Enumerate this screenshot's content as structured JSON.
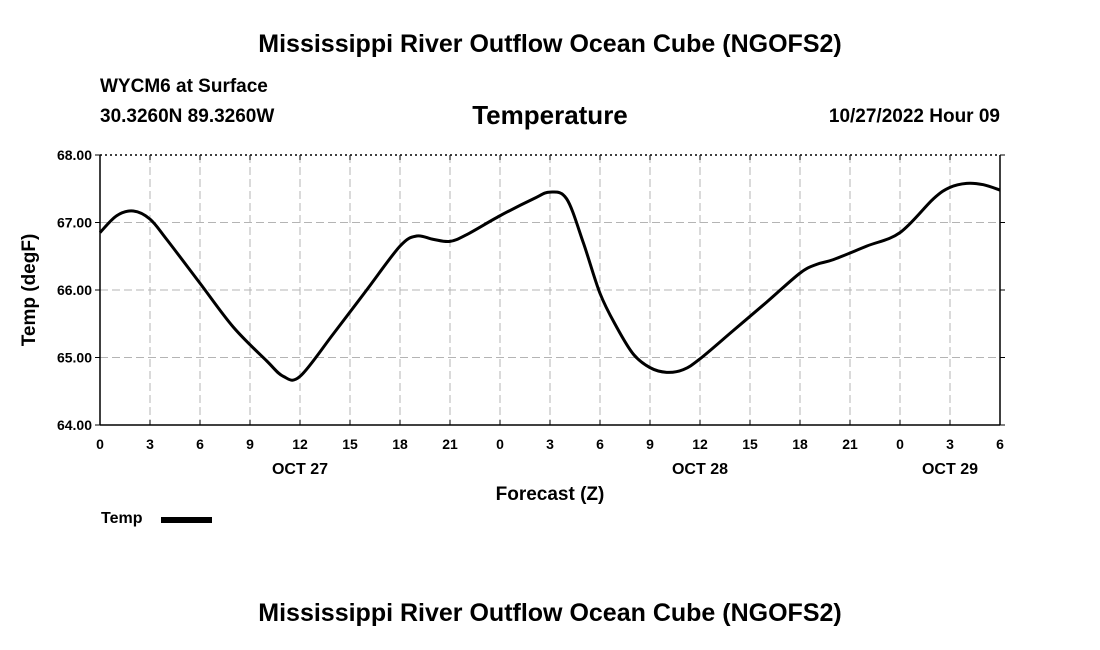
{
  "header": {
    "title": "Mississippi River Outflow Ocean Cube (NGOFS2)",
    "station": "WYCM6 at Surface",
    "coords": "30.3260N  89.3260W",
    "chart_title": "Temperature",
    "date": "10/27/2022 Hour 09"
  },
  "footer": {
    "title": "Mississippi River Outflow Ocean Cube (NGOFS2)"
  },
  "legend": {
    "label": "Temp"
  },
  "chart_data": {
    "type": "line",
    "title": "Temperature",
    "xlabel": "Forecast (Z)",
    "ylabel": "Temp (degF)",
    "xlim": [
      0,
      54
    ],
    "ylim": [
      64,
      68
    ],
    "y_ticks": [
      "64.00",
      "65.00",
      "66.00",
      "67.00",
      "68.00"
    ],
    "x_ticks": [
      "0",
      "3",
      "6",
      "9",
      "12",
      "15",
      "18",
      "21",
      "0",
      "3",
      "6",
      "9",
      "12",
      "15",
      "18",
      "21",
      "0",
      "3",
      "6"
    ],
    "day_labels": [
      {
        "label": "OCT 27",
        "hour": 12
      },
      {
        "label": "OCT 28",
        "hour": 36
      },
      {
        "label": "OCT 29",
        "hour": 51
      }
    ],
    "grid": true,
    "series": [
      {
        "name": "Temp",
        "color": "#000000",
        "x": [
          0,
          1,
          2,
          3,
          4,
          6,
          8,
          10,
          11,
          12,
          14,
          16,
          18,
          19,
          20,
          21,
          22,
          24,
          26,
          27,
          28,
          29,
          30,
          31,
          32,
          33,
          34,
          35,
          36,
          38,
          40,
          42,
          43,
          44,
          46,
          48,
          50,
          51,
          52,
          53,
          54
        ],
        "values": [
          66.85,
          67.1,
          67.17,
          67.05,
          66.75,
          66.1,
          65.45,
          64.95,
          64.72,
          64.72,
          65.35,
          66.0,
          66.65,
          66.8,
          66.75,
          66.72,
          66.82,
          67.1,
          67.35,
          67.45,
          67.35,
          66.7,
          65.95,
          65.45,
          65.05,
          64.85,
          64.78,
          64.82,
          64.98,
          65.4,
          65.82,
          66.25,
          66.38,
          66.45,
          66.65,
          66.85,
          67.35,
          67.52,
          67.58,
          67.56,
          67.48
        ]
      }
    ]
  }
}
